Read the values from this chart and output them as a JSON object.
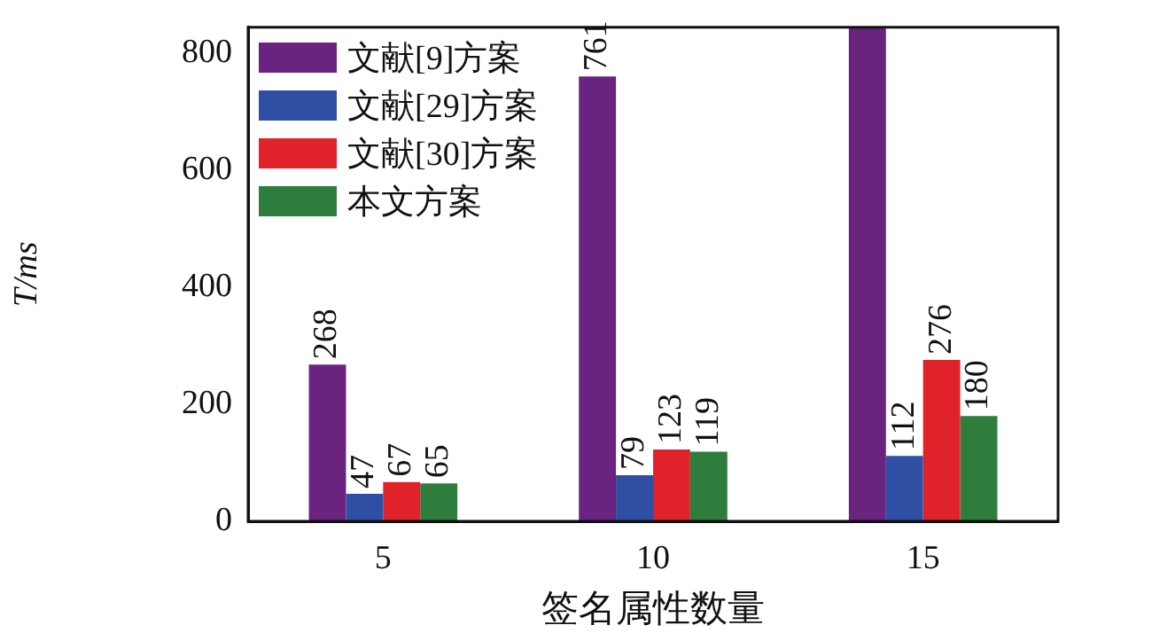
{
  "chart_data": {
    "type": "bar",
    "xlabel": "签名属性数量",
    "ylabel": "T/ms",
    "categories": [
      "5",
      "10",
      "15"
    ],
    "series": [
      {
        "name": "文献[9]方案",
        "color": "#6a237e",
        "values": [
          268,
          761,
          845
        ],
        "value_labels": [
          "268",
          "761",
          null
        ]
      },
      {
        "name": "文献[29]方案",
        "color": "#2e4fa3",
        "values": [
          47,
          79,
          112
        ],
        "value_labels": [
          "47",
          "79",
          "112"
        ]
      },
      {
        "name": "文献[30]方案",
        "color": "#e0222a",
        "values": [
          67,
          123,
          276
        ],
        "value_labels": [
          "67",
          "123",
          "276"
        ]
      },
      {
        "name": "本文方案",
        "color": "#2e7d3c",
        "values": [
          65,
          119,
          180
        ],
        "value_labels": [
          "65",
          "119",
          "180"
        ]
      }
    ],
    "ylim": [
      0,
      845
    ],
    "yticks": [
      0,
      200,
      400,
      600,
      800
    ],
    "grid": false,
    "legend": "top left"
  }
}
